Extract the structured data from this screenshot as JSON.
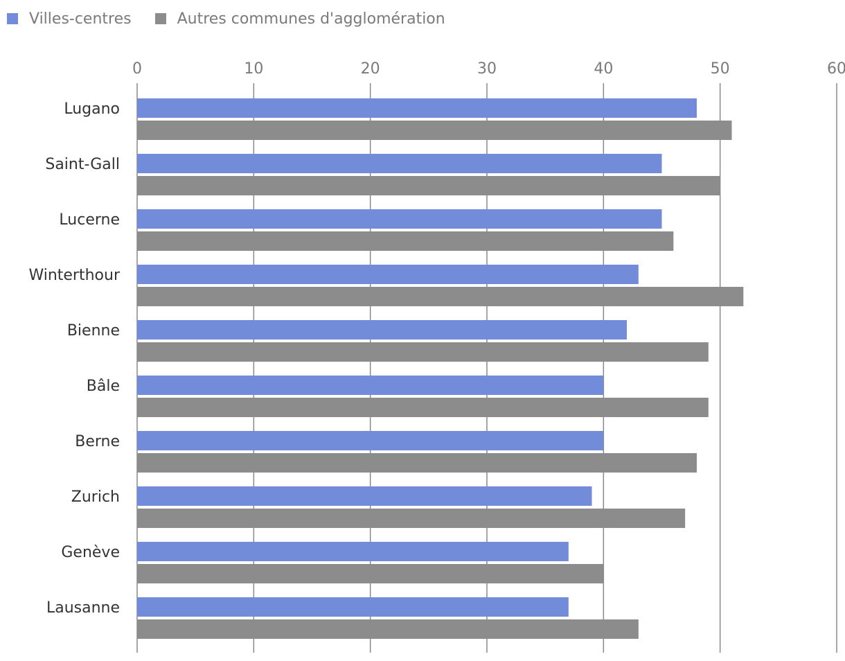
{
  "legend": {
    "items": [
      {
        "label": "Villes-centres",
        "color": "#728cd9"
      },
      {
        "label": "Autres communes d'agglomération",
        "color": "#8c8c8c"
      }
    ]
  },
  "chart_data": {
    "type": "bar",
    "orientation": "horizontal",
    "categories": [
      "Lugano",
      "Saint-Gall",
      "Lucerne",
      "Winterthour",
      "Bienne",
      "Bâle",
      "Berne",
      "Zurich",
      "Genève",
      "Lausanne"
    ],
    "series": [
      {
        "name": "Villes-centres",
        "color": "#728cd9",
        "values": [
          48,
          45,
          45,
          43,
          42,
          40,
          40,
          39,
          37,
          37
        ]
      },
      {
        "name": "Autres communes d'agglomération",
        "color": "#8c8c8c",
        "values": [
          51,
          50,
          46,
          52,
          49,
          49,
          48,
          47,
          40,
          43
        ]
      }
    ],
    "xticks": [
      "0",
      "10",
      "20",
      "30",
      "40",
      "50",
      "60"
    ],
    "xlim": [
      0,
      60
    ],
    "grid": true,
    "legend_position": "top-left",
    "axis_position": "top"
  }
}
